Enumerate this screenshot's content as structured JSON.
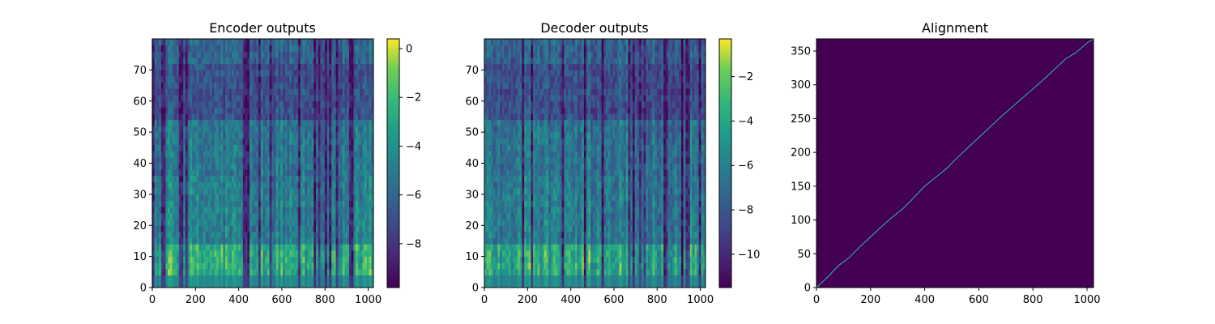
{
  "chart_data": [
    {
      "type": "heatmap",
      "title": "Encoder outputs",
      "xlabel": "",
      "ylabel": "",
      "x_range": [
        0,
        1024
      ],
      "y_range": [
        0,
        80
      ],
      "x_ticks": [
        0,
        200,
        400,
        600,
        800,
        1000
      ],
      "y_ticks": [
        0,
        10,
        20,
        30,
        40,
        50,
        60,
        70
      ],
      "colormap": "viridis",
      "colorbar": {
        "range": [
          -9.8,
          0.4
        ],
        "ticks": [
          0,
          -2,
          -4,
          -6,
          -8
        ],
        "tick_labels": [
          "0",
          "−2",
          "−4",
          "−6",
          "−8"
        ]
      },
      "grid": false
    },
    {
      "type": "heatmap",
      "title": "Decoder outputs",
      "xlabel": "",
      "ylabel": "",
      "x_range": [
        0,
        1024
      ],
      "y_range": [
        0,
        80
      ],
      "x_ticks": [
        0,
        200,
        400,
        600,
        800,
        1000
      ],
      "y_ticks": [
        0,
        10,
        20,
        30,
        40,
        50,
        60,
        70
      ],
      "colormap": "viridis",
      "colorbar": {
        "range": [
          -11.5,
          -0.3
        ],
        "ticks": [
          -2,
          -4,
          -6,
          -8,
          -10
        ],
        "tick_labels": [
          "−2",
          "−4",
          "−6",
          "−8",
          "−10"
        ]
      },
      "grid": false
    },
    {
      "type": "heatmap",
      "title": "Alignment",
      "xlabel": "",
      "ylabel": "",
      "x_range": [
        0,
        1024
      ],
      "y_range": [
        0,
        368
      ],
      "x_ticks": [
        0,
        200,
        400,
        600,
        800,
        1000
      ],
      "y_ticks": [
        0,
        50,
        100,
        150,
        200,
        250,
        300,
        350
      ],
      "colormap": "viridis",
      "background_color": "#440154",
      "line_color": "#2cb5c0",
      "alignment_path": {
        "x": [
          0,
          40,
          80,
          120,
          160,
          200,
          240,
          280,
          320,
          360,
          400,
          440,
          480,
          520,
          560,
          600,
          640,
          680,
          720,
          760,
          800,
          840,
          880,
          920,
          960,
          1000,
          1024
        ],
        "y": [
          0,
          15,
          32,
          44,
          60,
          75,
          90,
          104,
          117,
          133,
          150,
          163,
          176,
          192,
          207,
          222,
          237,
          252,
          266,
          280,
          294,
          308,
          323,
          338,
          348,
          362,
          368
        ]
      },
      "grid": false
    }
  ]
}
